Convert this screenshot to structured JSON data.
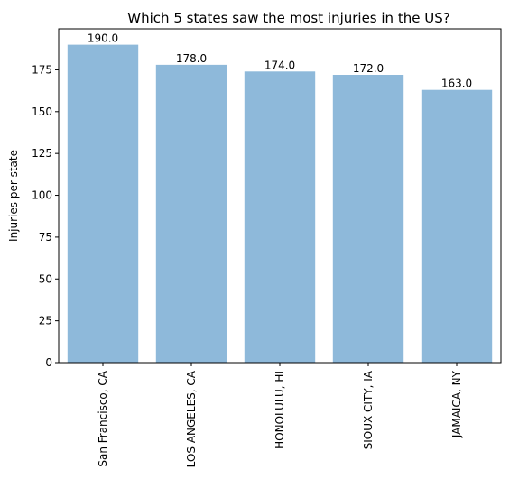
{
  "chart_data": {
    "type": "bar",
    "title": "Which 5 states saw the most injuries in the US?",
    "xlabel": "",
    "ylabel": "Injuries per state",
    "categories": [
      "San Francisco, CA",
      "LOS ANGELES, CA",
      "HONOLULU, HI",
      "SIOUX CITY, IA",
      "JAMAICA, NY"
    ],
    "values": [
      190.0,
      178.0,
      174.0,
      172.0,
      163.0
    ],
    "value_labels": [
      "190.0",
      "178.0",
      "174.0",
      "172.0",
      "163.0"
    ],
    "ylim": [
      0,
      199.5
    ],
    "yticks": [
      0,
      25,
      50,
      75,
      100,
      125,
      150,
      175
    ],
    "bar_color": "#8eb9da",
    "grid": false,
    "legend": "none"
  }
}
